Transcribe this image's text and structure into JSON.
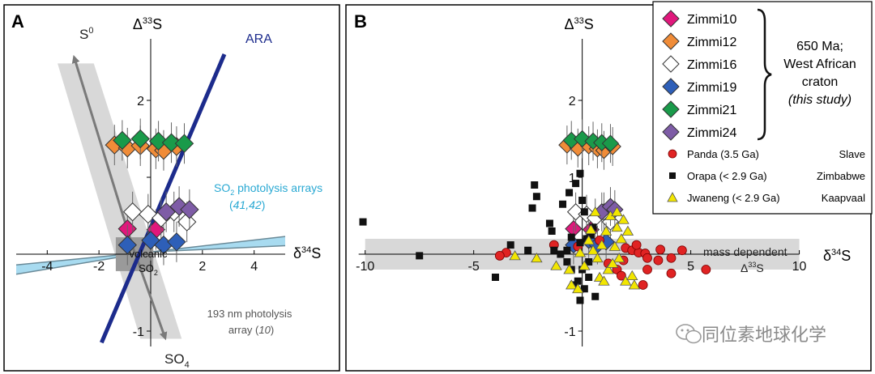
{
  "colors": {
    "zimmi10": "#e0187c",
    "zimmi12": "#f08c38",
    "zimmi16": "#ffffff",
    "zimmi19": "#2e5fb8",
    "zimmi21": "#1a9a4a",
    "zimmi24": "#7e5ca6",
    "panda": "#e02323",
    "orapa": "#111111",
    "jwaneng": "#f2e600",
    "ara": "#1c2b8c",
    "so2_band": "#a8dbf0",
    "so2_text": "#2aa9d3",
    "gray_band": "#d8d8d8",
    "arrow": "#7a7a7a"
  },
  "watermark": "同位素地球化学",
  "chart_data": [
    {
      "type": "scatter",
      "panel_label": "A",
      "xlabel": "δ34S",
      "ylabel": "Δ33S",
      "xlim": [
        -5.2,
        5.2
      ],
      "ylim": [
        -1.2,
        2.8
      ],
      "xticks": [
        -4,
        -2,
        2,
        4
      ],
      "xtick_labels": [
        "-4",
        "-2",
        "2",
        "4"
      ],
      "yticks": [
        2,
        1,
        -1
      ],
      "ytick_labels": [
        "2",
        "",
        "-1"
      ],
      "annotations": {
        "s0": "S0",
        "so4": "SO4",
        "ara": "ARA",
        "so2_line1": "SO2 photolysis arrays",
        "so2_line2": "(41,42)",
        "volcanic_line1": "volcanic",
        "volcanic_line2": "SO2",
        "photolysis193_line1": "193 nm photolysis",
        "photolysis193_line2": "array (10)"
      },
      "series": [
        {
          "name": "Zimmi10",
          "points": [
            [
              -0.9,
              0.33
            ],
            [
              0.2,
              0.32
            ]
          ]
        },
        {
          "name": "Zimmi12",
          "points": [
            [
              -1.4,
              1.42
            ],
            [
              -0.9,
              1.38
            ],
            [
              -0.4,
              1.41
            ],
            [
              0.2,
              1.37
            ],
            [
              0.5,
              1.35
            ],
            [
              1.0,
              1.4
            ]
          ]
        },
        {
          "name": "Zimmi16",
          "points": [
            [
              -0.7,
              0.55
            ],
            [
              -0.1,
              0.52
            ],
            [
              0.4,
              0.47
            ],
            [
              0.9,
              0.55
            ],
            [
              1.4,
              0.42
            ]
          ]
        },
        {
          "name": "Zimmi19",
          "points": [
            [
              -0.9,
              0.12
            ],
            [
              0.0,
              0.18
            ],
            [
              0.5,
              0.12
            ],
            [
              1.0,
              0.16
            ]
          ]
        },
        {
          "name": "Zimmi21",
          "points": [
            [
              -1.1,
              1.48
            ],
            [
              -0.4,
              1.5
            ],
            [
              0.3,
              1.47
            ],
            [
              0.8,
              1.45
            ],
            [
              1.3,
              1.44
            ]
          ]
        },
        {
          "name": "Zimmi24",
          "points": [
            [
              0.6,
              0.55
            ],
            [
              1.1,
              0.62
            ],
            [
              1.5,
              0.58
            ]
          ]
        }
      ]
    },
    {
      "type": "scatter",
      "panel_label": "B",
      "xlabel": "δ34S",
      "ylabel": "Δ33S",
      "xlim": [
        -10.4,
        10.8
      ],
      "ylim": [
        -1.2,
        2.8
      ],
      "xticks": [
        -10,
        -5,
        5,
        10
      ],
      "xtick_labels": [
        "-10",
        "-5",
        "5",
        "10"
      ],
      "yticks": [
        2,
        1,
        -1
      ],
      "ytick_labels": [
        "2",
        "1",
        "-1"
      ],
      "band_label_1": "mass dependent",
      "band_label_2": "Δ33S",
      "legend": {
        "placement": "top-right",
        "diamond_entries": [
          "Zimmi10",
          "Zimmi12",
          "Zimmi16",
          "Zimmi19",
          "Zimmi21",
          "Zimmi24"
        ],
        "group_label_line1": "650 Ma;",
        "group_label_line2": "West African",
        "group_label_line3": "craton",
        "group_label_line4": "(this study)",
        "other_entries": [
          {
            "name": "Panda (3.5 Ga)",
            "region": "Slave"
          },
          {
            "name": "Orapa (< 2.9 Ga)",
            "region": "Zimbabwe"
          },
          {
            "name": "Jwaneng (< 2.9 Ga)",
            "region": "Kaapvaal"
          }
        ]
      },
      "series": [
        {
          "name": "Zimmi10",
          "points": [
            [
              -0.4,
              0.33
            ],
            [
              0.4,
              0.32
            ]
          ]
        },
        {
          "name": "Zimmi12",
          "points": [
            [
              -0.7,
              1.42
            ],
            [
              -0.2,
              1.38
            ],
            [
              0.3,
              1.41
            ],
            [
              0.7,
              1.37
            ],
            [
              1.0,
              1.35
            ],
            [
              1.4,
              1.4
            ]
          ]
        },
        {
          "name": "Zimmi16",
          "points": [
            [
              -0.3,
              0.55
            ],
            [
              0.2,
              0.52
            ],
            [
              0.6,
              0.47
            ],
            [
              1.0,
              0.55
            ],
            [
              1.3,
              0.42
            ]
          ]
        },
        {
          "name": "Zimmi19",
          "points": [
            [
              -0.4,
              0.12
            ],
            [
              0.3,
              0.18
            ],
            [
              0.7,
              0.12
            ],
            [
              1.1,
              0.16
            ]
          ]
        },
        {
          "name": "Zimmi21",
          "points": [
            [
              -0.5,
              1.48
            ],
            [
              0.0,
              1.5
            ],
            [
              0.5,
              1.47
            ],
            [
              0.9,
              1.45
            ],
            [
              1.3,
              1.44
            ]
          ]
        },
        {
          "name": "Zimmi24",
          "points": [
            [
              0.9,
              0.55
            ],
            [
              1.3,
              0.62
            ],
            [
              1.5,
              0.58
            ]
          ]
        },
        {
          "name": "Panda (3.5 Ga)",
          "points": [
            [
              -3.5,
              0.02
            ],
            [
              -3.8,
              -0.02
            ],
            [
              2.0,
              0.08
            ],
            [
              2.3,
              0.05
            ],
            [
              2.6,
              0.02
            ],
            [
              2.9,
              0.01
            ],
            [
              3.6,
              0.06
            ],
            [
              4.6,
              0.05
            ],
            [
              3.0,
              -0.05
            ],
            [
              3.5,
              -0.08
            ],
            [
              4.1,
              -0.05
            ],
            [
              4.1,
              -0.25
            ],
            [
              5.7,
              -0.2
            ],
            [
              3.0,
              -0.2
            ],
            [
              1.2,
              -0.12
            ],
            [
              1.6,
              -0.2
            ],
            [
              1.8,
              -0.28
            ],
            [
              1.9,
              -0.08
            ],
            [
              2.5,
              0.12
            ],
            [
              0.8,
              0.18
            ],
            [
              2.8,
              -0.4
            ],
            [
              -1.3,
              0.12
            ],
            [
              -0.2,
              0.1
            ]
          ]
        },
        {
          "name": "Orapa (< 2.9 Ga)",
          "points": [
            [
              -10.1,
              0.42
            ],
            [
              -7.5,
              -0.02
            ],
            [
              -4.0,
              -0.3
            ],
            [
              -3.3,
              0.12
            ],
            [
              -2.5,
              0.05
            ],
            [
              -2.3,
              0.6
            ],
            [
              -2.2,
              0.9
            ],
            [
              -2.1,
              0.75
            ],
            [
              -1.5,
              0.4
            ],
            [
              -1.4,
              0.3
            ],
            [
              -1.3,
              0.05
            ],
            [
              -1.0,
              0.0
            ],
            [
              -0.7,
              -0.1
            ],
            [
              -0.5,
              -0.2
            ],
            [
              -0.3,
              0.92
            ],
            [
              -0.1,
              1.05
            ],
            [
              0.0,
              0.7
            ],
            [
              0.1,
              0.55
            ],
            [
              -0.6,
              0.8
            ],
            [
              -0.9,
              0.65
            ],
            [
              0.2,
              0.2
            ],
            [
              0.4,
              0.25
            ],
            [
              0.5,
              0.35
            ],
            [
              -0.1,
              0.15
            ],
            [
              0.3,
              -0.3
            ],
            [
              -0.2,
              -0.35
            ],
            [
              0.1,
              -0.45
            ],
            [
              -0.4,
              -0.4
            ],
            [
              0.6,
              -0.55
            ],
            [
              -0.1,
              -0.6
            ],
            [
              0.3,
              -0.1
            ],
            [
              -0.5,
              0.22
            ],
            [
              -0.7,
              0.05
            ],
            [
              0.0,
              -0.2
            ]
          ]
        },
        {
          "name": "Jwaneng (< 2.9 Ga)",
          "points": [
            [
              -3.1,
              -0.02
            ],
            [
              -2.1,
              -0.05
            ],
            [
              -1.2,
              -0.15
            ],
            [
              -0.6,
              -0.2
            ],
            [
              -0.5,
              -0.4
            ],
            [
              -0.2,
              -0.45
            ],
            [
              0.1,
              -0.15
            ],
            [
              0.3,
              0.18
            ],
            [
              0.5,
              0.05
            ],
            [
              0.7,
              -0.05
            ],
            [
              0.8,
              -0.3
            ],
            [
              1.0,
              -0.35
            ],
            [
              1.2,
              -0.2
            ],
            [
              1.5,
              0.1
            ],
            [
              1.6,
              0.35
            ],
            [
              1.8,
              0.2
            ],
            [
              1.7,
              -0.05
            ],
            [
              2.0,
              -0.35
            ],
            [
              2.3,
              -0.28
            ],
            [
              2.4,
              -0.4
            ],
            [
              1.3,
              0.5
            ],
            [
              1.6,
              0.55
            ],
            [
              1.9,
              0.45
            ],
            [
              2.1,
              0.3
            ],
            [
              1.1,
              0.3
            ],
            [
              0.9,
              0.12
            ],
            [
              0.4,
              0.32
            ],
            [
              -0.1,
              0.02
            ],
            [
              0.6,
              0.55
            ],
            [
              1.4,
              -0.12
            ]
          ]
        }
      ]
    }
  ]
}
